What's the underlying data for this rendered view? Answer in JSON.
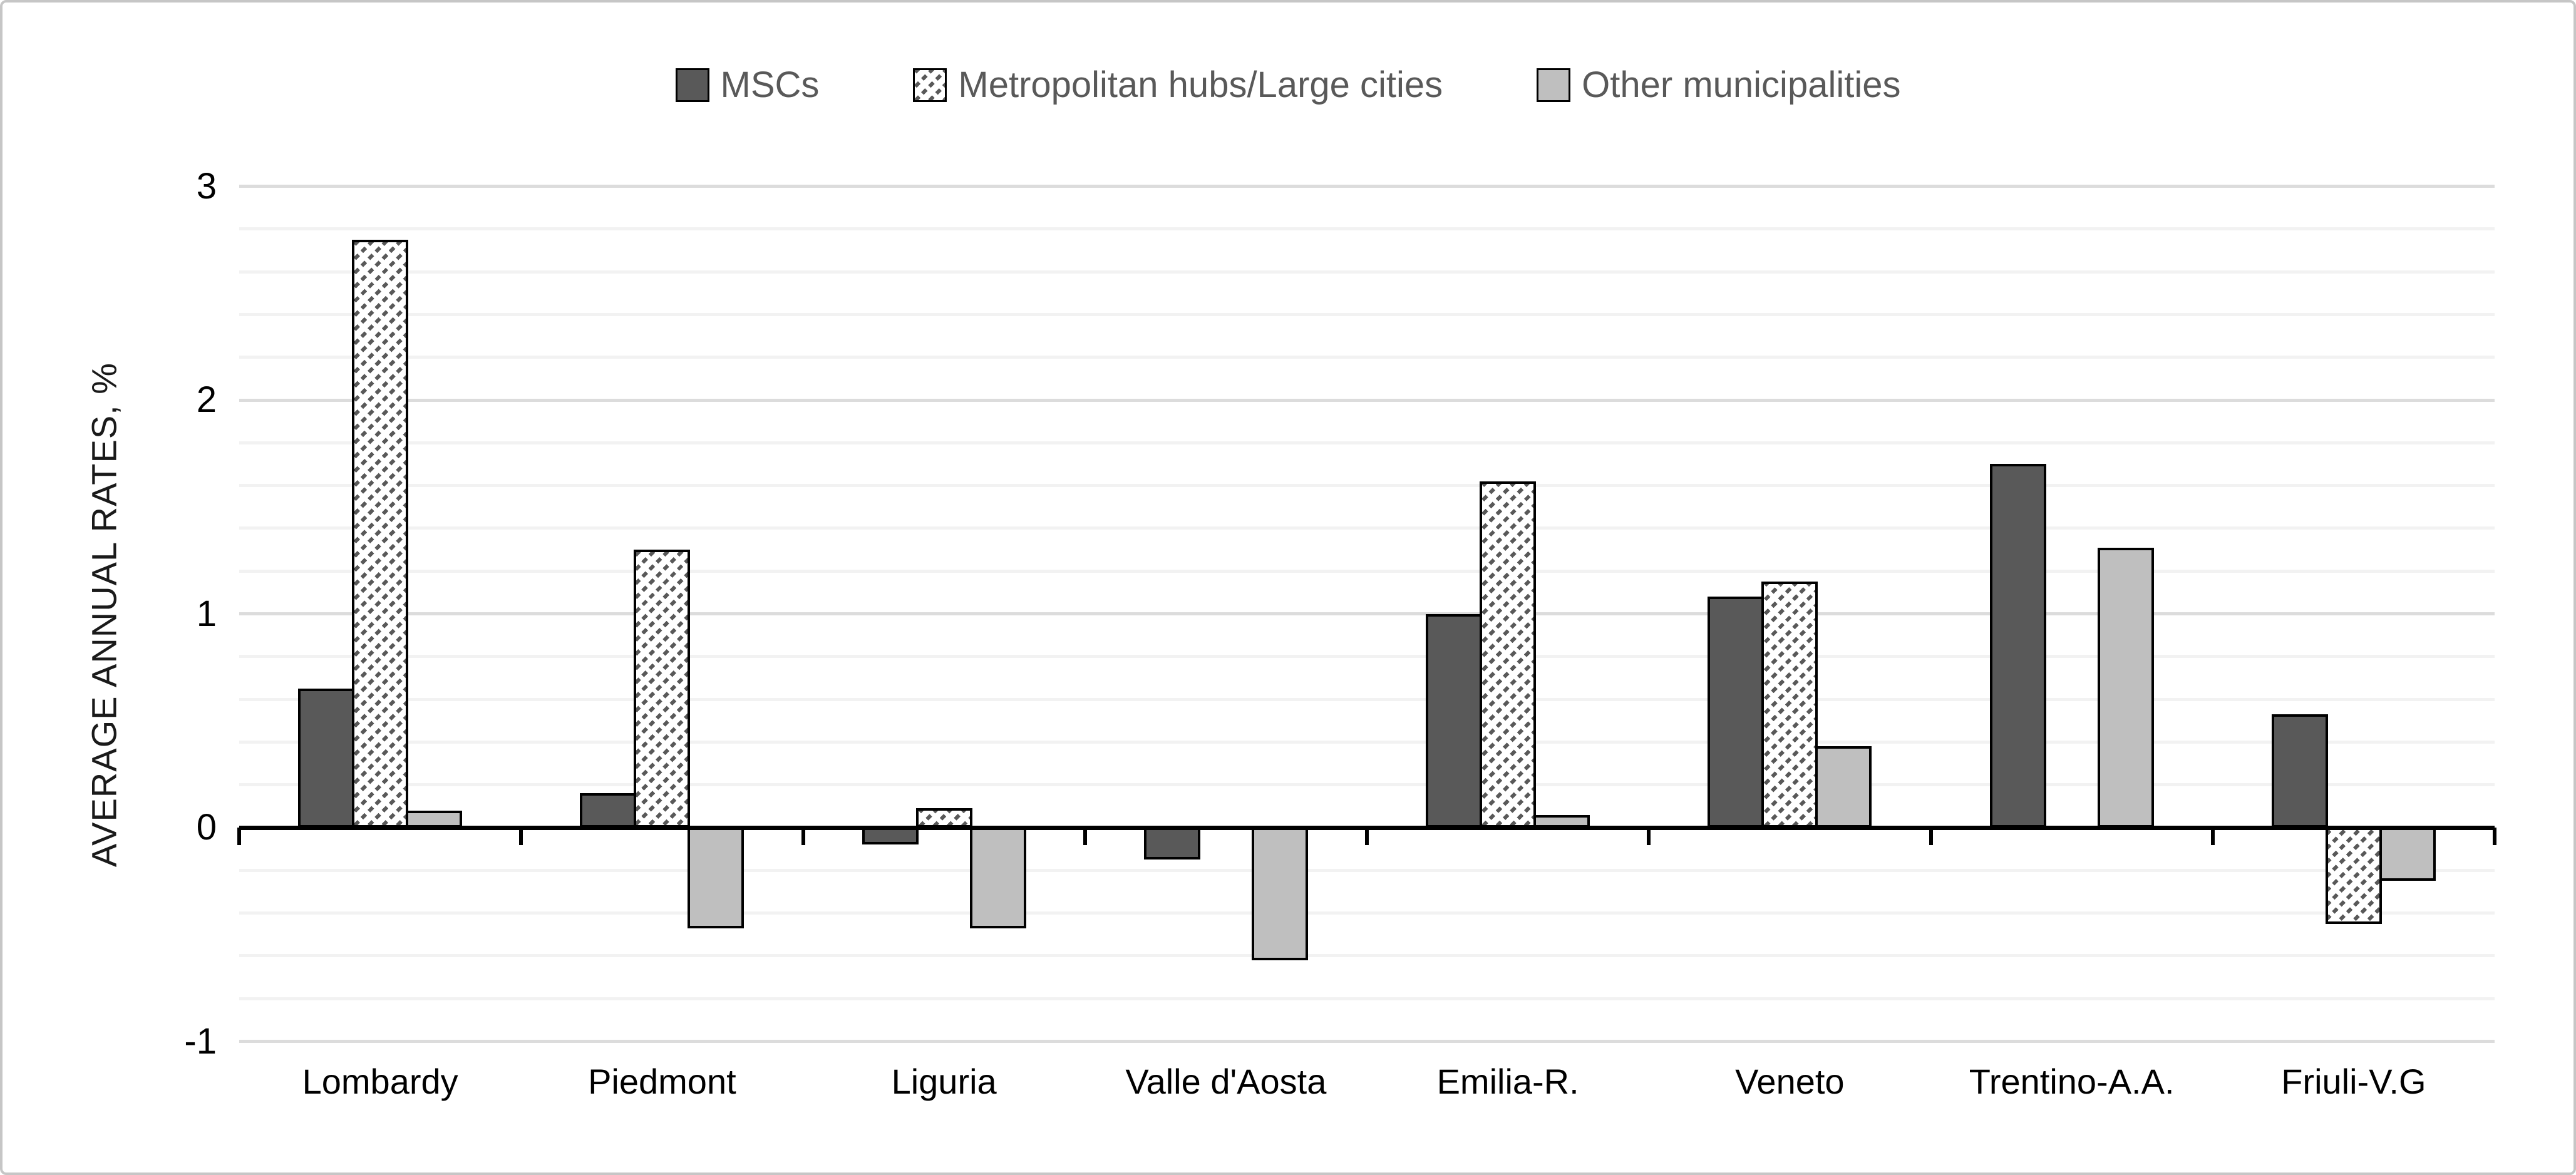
{
  "chart_data": {
    "type": "bar",
    "title": "",
    "subtitle": "",
    "xlabel": "",
    "ylabel": "AVERAGE ANNUAL RATES, %",
    "categories": [
      "Lombardy",
      "Piedmont",
      "Liguria",
      "Valle d'Aosta",
      "Emilia-R.",
      "Veneto",
      "Trentino-A.A.",
      "Friuli-V.G"
    ],
    "series": [
      {
        "name": "MSCs",
        "pattern": "solid-dark",
        "values": [
          0.65,
          0.16,
          -0.08,
          -0.15,
          1.0,
          1.08,
          1.7,
          0.53
        ]
      },
      {
        "name": "Metropolitan hubs/Large cities",
        "pattern": "diagonal-hatch",
        "values": [
          2.75,
          1.3,
          0.09,
          0,
          1.62,
          1.15,
          0,
          -0.45
        ]
      },
      {
        "name": "Other municipalities",
        "pattern": "solid-light",
        "values": [
          0.08,
          -0.47,
          -0.47,
          -0.62,
          0.06,
          0.38,
          1.31,
          -0.25
        ]
      }
    ],
    "ylim": [
      -1,
      3
    ],
    "y_major_step": 1,
    "y_minor_step": 0.2,
    "y_tick_labels": [
      "3",
      "2",
      "1",
      "0",
      "-1"
    ],
    "grid": "horizontal; minor lines every 0.2 (very light), major lines at integers (slightly darker); x-axis black with boundary ticks",
    "legend_position": "top-center",
    "colors": {
      "dark_series": "#595959",
      "light_series": "#bfbfbf",
      "hatch_fg": "#595959",
      "hatch_bg": "#ffffff",
      "bar_border": "#000000",
      "axis": "#000000",
      "grid_minor": "#f2f2f2",
      "grid_major": "#dcdcdc",
      "legend_text": "#595959",
      "tick_text": "#000000",
      "frame_border": "#c6c6c6"
    }
  }
}
